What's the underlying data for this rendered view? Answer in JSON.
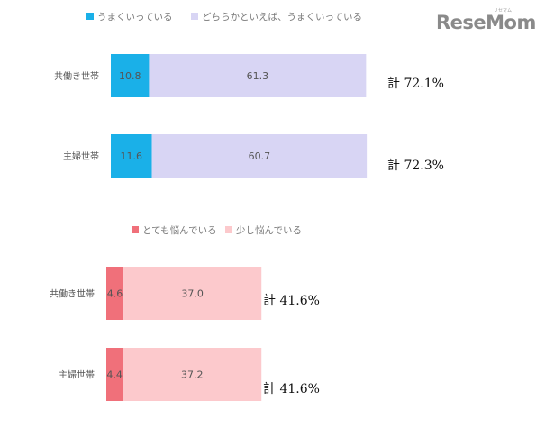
{
  "logo": {
    "text": "ReseMom",
    "ruby": "リセマム"
  },
  "chart_data": [
    {
      "type": "bar",
      "orientation": "horizontal",
      "stacked": true,
      "categories": [
        "共働き世帯",
        "主婦世帯"
      ],
      "series": [
        {
          "name": "うまくいっている",
          "values": [
            10.8,
            11.6
          ],
          "color": "#1ab0e8"
        },
        {
          "name": "どちらかといえば、うまくいっている",
          "values": [
            61.3,
            60.7
          ],
          "color": "#d8d5f4"
        }
      ],
      "totals": [
        "計 72.1%",
        "計 72.3%"
      ],
      "legend_position": "top"
    },
    {
      "type": "bar",
      "orientation": "horizontal",
      "stacked": true,
      "categories": [
        "共働き世帯",
        "主婦世帯"
      ],
      "series": [
        {
          "name": "とても悩んでいる",
          "values": [
            4.6,
            4.4
          ],
          "color": "#f0707a"
        },
        {
          "name": "少し悩んでいる",
          "values": [
            37.0,
            37.2
          ],
          "color": "#fcc9cc"
        }
      ],
      "totals": [
        "計 41.6%",
        "計 41.6%"
      ],
      "legend_position": "top"
    }
  ]
}
